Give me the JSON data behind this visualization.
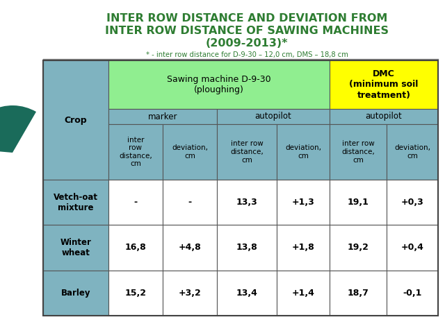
{
  "title_line1": "INTER ROW DISTANCE AND DEVIATION FROM",
  "title_line2": "INTER ROW DISTANCE OF SAWING MACHINES",
  "title_line3": "(2009-2013)*",
  "subtitle": "* - inter row distance for D-9-30 – 12,0 cm, DMS – 18,8 cm",
  "title_color": "#2e7d32",
  "subtitle_color": "#2e7d32",
  "bg_color": "#ffffff",
  "table_bg": "#7fb3c0",
  "header1_color": "#90ee90",
  "header2_color": "#ffff00",
  "data_bg": "#ffffff",
  "col_header": "Crop",
  "machine1_header": "Sawing machine D-9-30\n(ploughing)",
  "machine2_header": "DMC\n(minimum soil\ntreatment)",
  "sub_header_marker": "marker",
  "sub_header_autopilot1": "autopilot",
  "sub_header_autopilot2": "autopilot",
  "col_labels": [
    "inter\nrow\ndistance,\ncm",
    "deviation,\ncm",
    "inter row\ndistance,\ncm",
    "deviation,\ncm",
    "inter row\ndistance,\ncm",
    "deviation,\ncm"
  ],
  "rows": [
    [
      "Vetch-oat\nmixture",
      "-",
      "-",
      "13,3",
      "+1,3",
      "19,1",
      "+0,3"
    ],
    [
      "Winter\nwheat",
      "16,8",
      "+4,8",
      "13,8",
      "+1,8",
      "19,2",
      "+0,4"
    ],
    [
      "Barley",
      "15,2",
      "+3,2",
      "13,4",
      "+1,4",
      "18,7",
      "-0,1"
    ]
  ],
  "circle_color": "#1a6b5a",
  "border_color": "#888888"
}
